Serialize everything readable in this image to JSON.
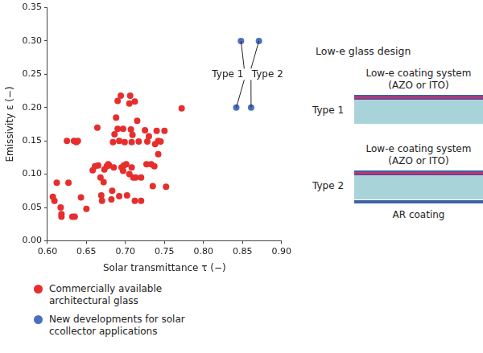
{
  "chart_data": {
    "type": "scatter",
    "x_label": "Solar transmittance τ (−)",
    "y_label": "Emissivity ε (−)",
    "xlim": [
      0.6,
      0.9
    ],
    "xticks": [
      {
        "value": 0.6,
        "label": "0.60"
      },
      {
        "value": 0.65,
        "label": "0.65"
      },
      {
        "value": 0.7,
        "label": "0.70"
      },
      {
        "value": 0.75,
        "label": "0.75"
      },
      {
        "value": 0.8,
        "label": "0.80"
      },
      {
        "value": 0.85,
        "label": "0.85"
      },
      {
        "value": 0.9,
        "label": "0.90"
      }
    ],
    "ylim": [
      0,
      0.35
    ],
    "yticks": [
      {
        "value": 0,
        "label": "0.00"
      },
      {
        "value": 0.05,
        "label": "0.05"
      },
      {
        "value": 0.1,
        "label": "0.10"
      },
      {
        "value": 0.15,
        "label": "0.15"
      },
      {
        "value": 0.2,
        "label": "0.20"
      },
      {
        "value": 0.25,
        "label": "0.25"
      },
      {
        "value": 0.3,
        "label": "0.30"
      },
      {
        "value": 0.35,
        "label": "0.35"
      }
    ],
    "grid": false,
    "legend": "bottom",
    "marker": "circle",
    "series": [
      {
        "name": "Commercially available architectural glass",
        "color": "#e62e2d",
        "x": [
          0.607,
          0.609,
          0.612,
          0.617,
          0.618,
          0.618,
          0.625,
          0.627,
          0.632,
          0.635,
          0.634,
          0.637,
          0.639,
          0.643,
          0.65,
          0.658,
          0.661,
          0.664,
          0.665,
          0.668,
          0.669,
          0.67,
          0.672,
          0.673,
          0.676,
          0.678,
          0.679,
          0.682,
          0.683,
          0.684,
          0.686,
          0.688,
          0.69,
          0.69,
          0.692,
          0.692,
          0.694,
          0.695,
          0.697,
          0.697,
          0.698,
          0.699,
          0.701,
          0.702,
          0.705,
          0.706,
          0.707,
          0.708,
          0.708,
          0.709,
          0.71,
          0.712,
          0.713,
          0.715,
          0.717,
          0.72,
          0.725,
          0.727,
          0.728,
          0.73,
          0.733,
          0.735,
          0.737,
          0.74,
          0.742,
          0.745,
          0.75,
          0.752,
          0.742,
          0.772,
          0.738,
          0.712,
          0.72,
          0.705,
          0.685
        ],
        "values": [
          0.066,
          0.06,
          0.087,
          0.05,
          0.04,
          0.036,
          0.15,
          0.087,
          0.036,
          0.036,
          0.15,
          0.148,
          0.15,
          0.065,
          0.048,
          0.106,
          0.112,
          0.17,
          0.113,
          0.095,
          0.068,
          0.06,
          0.088,
          0.107,
          0.112,
          0.115,
          0.113,
          0.062,
          0.075,
          0.148,
          0.16,
          0.185,
          0.21,
          0.168,
          0.15,
          0.067,
          0.218,
          0.11,
          0.105,
          0.168,
          0.113,
          0.148,
          0.115,
          0.068,
          0.206,
          0.218,
          0.167,
          0.148,
          0.11,
          0.159,
          0.095,
          0.209,
          0.095,
          0.18,
          0.149,
          0.095,
          0.166,
          0.115,
          0.149,
          0.157,
          0.115,
          0.082,
          0.112,
          0.165,
          0.15,
          0.149,
          0.165,
          0.081,
          0.13,
          0.199,
          0.145,
          0.06,
          0.06,
          0.1,
          0.11
        ]
      },
      {
        "name": "New developments for solar ccollector applications",
        "color": "#4a6fbf",
        "x": [
          0.848,
          0.842,
          0.871,
          0.861
        ],
        "values": [
          0.3,
          0.2,
          0.3,
          0.2
        ]
      }
    ],
    "annotations": [
      {
        "text": "Type 1",
        "x": 0.831,
        "y": 0.25,
        "points": [
          [
            0.848,
            0.3
          ],
          [
            0.842,
            0.2
          ]
        ]
      },
      {
        "text": "Type 2",
        "x": 0.882,
        "y": 0.25,
        "points": [
          [
            0.871,
            0.3
          ],
          [
            0.861,
            0.2
          ]
        ]
      }
    ]
  },
  "diagram": {
    "title": "Low-e glass design",
    "items": [
      {
        "label": "Type 1",
        "coating": [
          "Low-e coating system",
          "(AZO or ITO)"
        ]
      },
      {
        "label": "Type 2",
        "coating": [
          "Low-e coating system",
          "(AZO or ITO)"
        ],
        "back_coating": "AR coating"
      }
    ]
  }
}
